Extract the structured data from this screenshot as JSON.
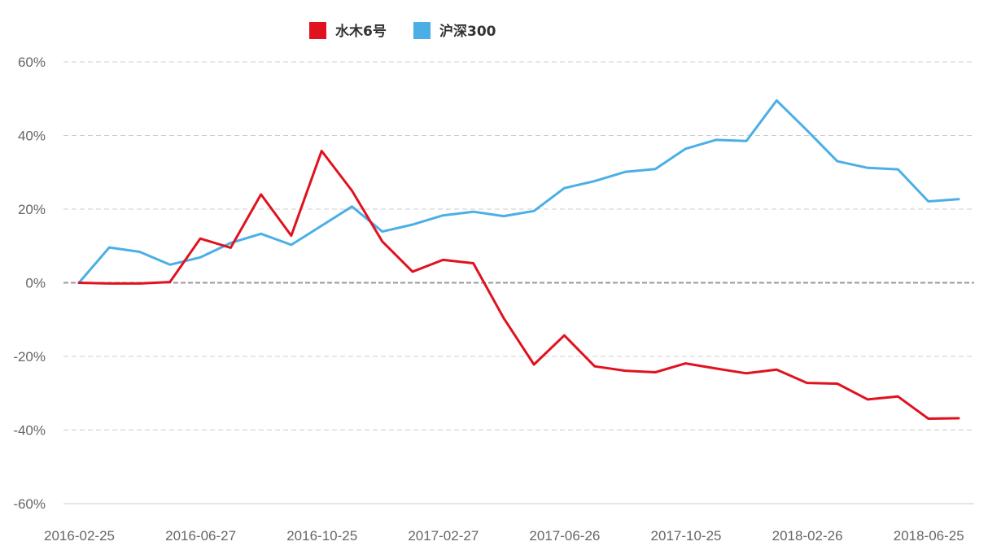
{
  "chart_data": {
    "type": "line",
    "title": "",
    "xlabel": "",
    "ylabel": "",
    "ylim": [
      -60,
      60
    ],
    "y_ticks": [
      "60%",
      "40%",
      "20%",
      "0%",
      "-20%",
      "-40%",
      "-60%"
    ],
    "y_tick_values": [
      60,
      40,
      20,
      0,
      -20,
      -40,
      -60
    ],
    "x_tick_labels": [
      "2016-02-25",
      "2016-06-27",
      "2016-10-25",
      "2017-02-27",
      "2017-06-26",
      "2017-10-25",
      "2018-02-26",
      "2018-06-25"
    ],
    "x_tick_positions": [
      0,
      4,
      8,
      12,
      16,
      20,
      24,
      28
    ],
    "x_max": 29,
    "grid": true,
    "legend": "top-center",
    "series": [
      {
        "name": "水木6号",
        "color": "#e0121f",
        "values": [
          0.0,
          -0.2,
          -0.2,
          0.2,
          12.0,
          9.5,
          24.0,
          12.8,
          35.8,
          25.0,
          11.2,
          3.0,
          6.2,
          5.3,
          -9.6,
          -22.2,
          -14.3,
          -22.7,
          -23.9,
          -24.3,
          -21.9,
          -23.3,
          -24.6,
          -23.6,
          -27.2,
          -27.4,
          -31.7,
          -30.9,
          -36.9,
          -36.8
        ]
      },
      {
        "name": "沪深300",
        "color": "#4bafe6",
        "values": [
          0.0,
          9.6,
          8.4,
          4.9,
          6.9,
          10.8,
          13.3,
          10.3,
          15.5,
          20.7,
          13.9,
          15.8,
          18.3,
          19.3,
          18.1,
          19.5,
          25.7,
          27.6,
          30.1,
          30.9,
          36.4,
          38.8,
          38.5,
          49.5,
          41.4,
          33.0,
          31.2,
          30.8,
          22.1,
          22.7
        ]
      }
    ]
  }
}
